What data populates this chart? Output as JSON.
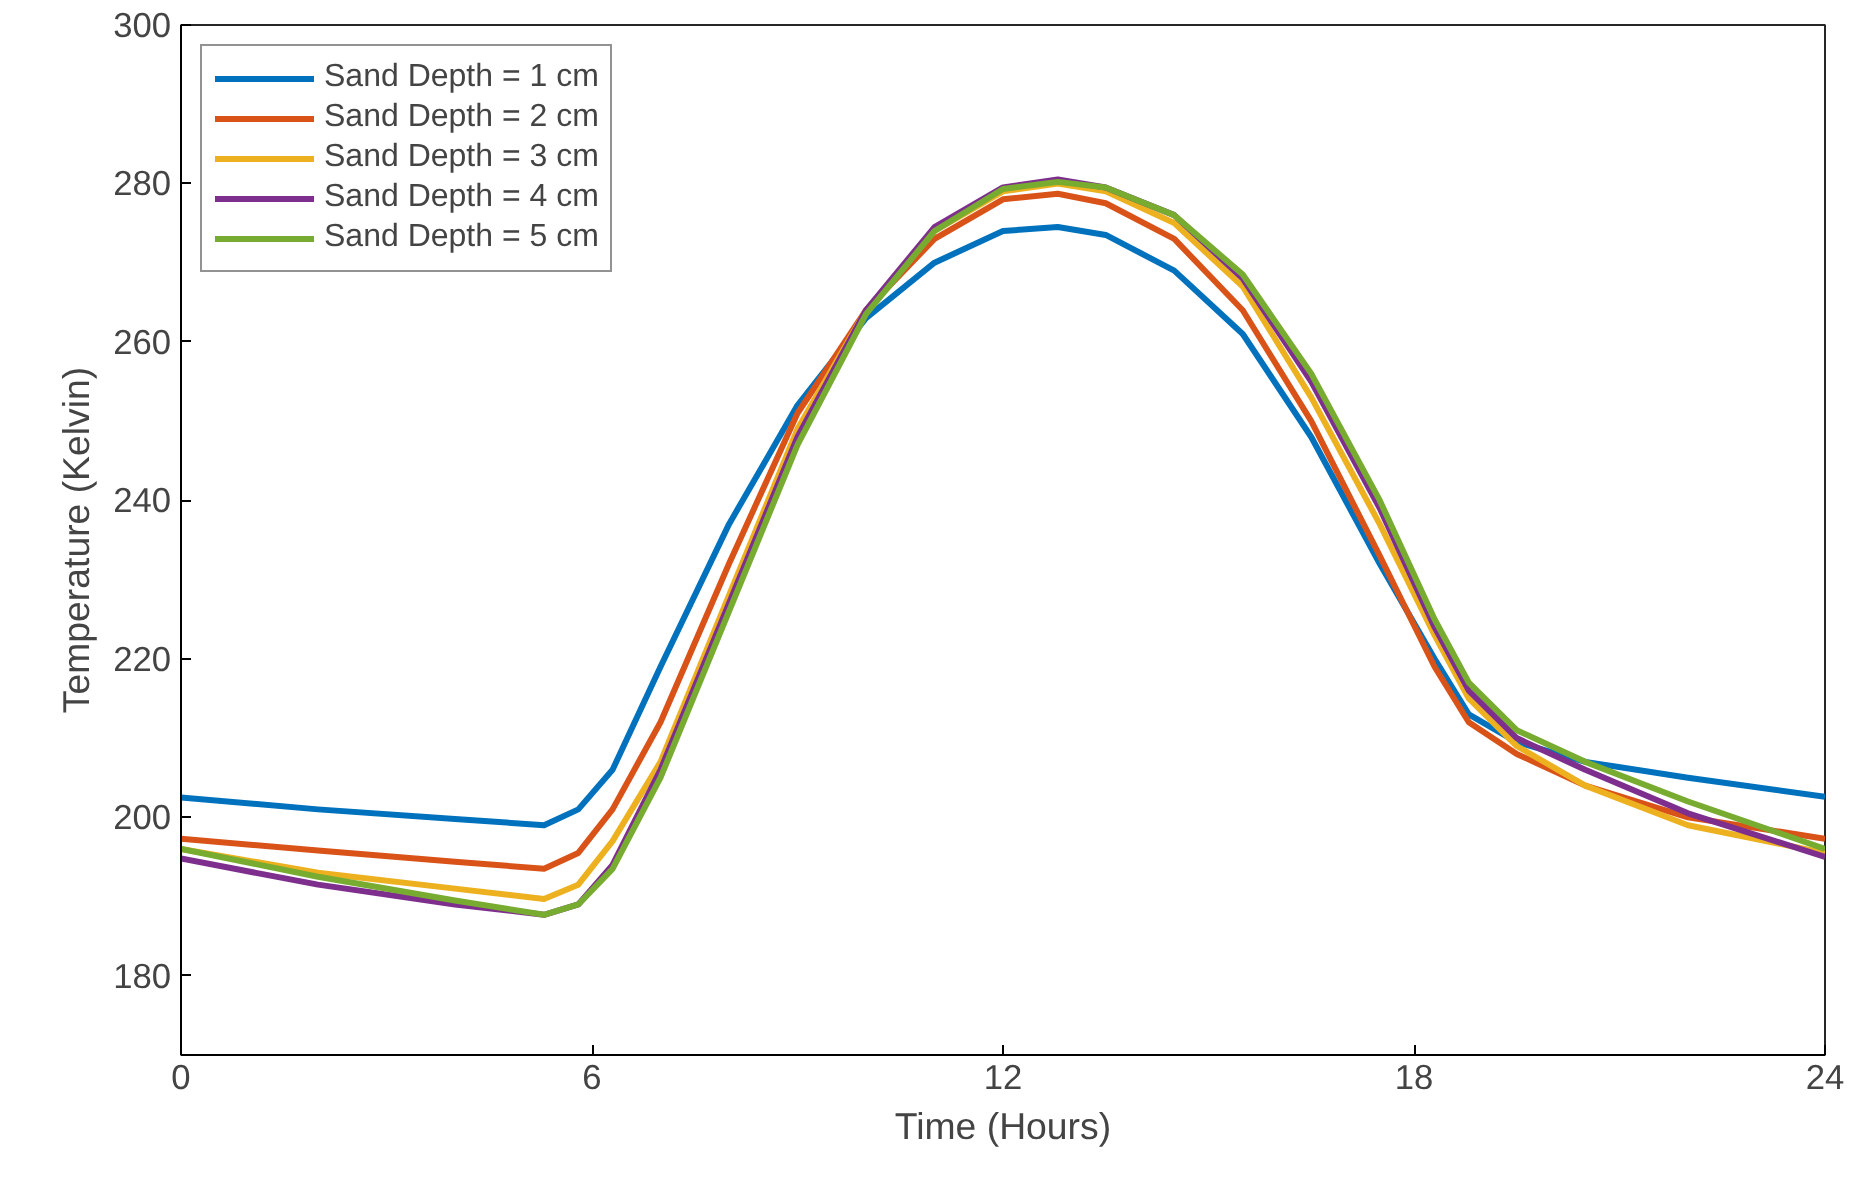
{
  "chart_data": {
    "type": "line",
    "xlabel": "Time (Hours)",
    "ylabel": "Temperature (Kelvin)",
    "xlim": [
      0,
      24
    ],
    "ylim": [
      170,
      300
    ],
    "xticks": [
      0,
      6,
      12,
      18,
      24
    ],
    "yticks": [
      180,
      200,
      220,
      240,
      260,
      280,
      300
    ],
    "grid": false,
    "legend": "top left",
    "line_style": "solid",
    "marker": "none",
    "x": [
      0,
      2,
      4,
      5.3,
      5.8,
      6.3,
      7,
      8,
      9,
      10,
      11,
      12,
      12.8,
      13.5,
      14.5,
      15.5,
      16.5,
      17.5,
      18.3,
      18.8,
      19.5,
      20.5,
      22,
      24
    ],
    "series": [
      {
        "name": "Sand Depth = 1 cm",
        "color": "#0072bd",
        "values": [
          202.5,
          201,
          199.8,
          199,
          201,
          206,
          219,
          237,
          252,
          263,
          270,
          274,
          274.5,
          273.5,
          269,
          261,
          248,
          232,
          220,
          213,
          209.5,
          207,
          205,
          202.6
        ]
      },
      {
        "name": "Sand Depth = 2 cm",
        "color": "#d95319",
        "values": [
          197.3,
          195.8,
          194.4,
          193.5,
          195.5,
          201,
          212,
          232,
          251,
          264,
          273,
          278,
          278.7,
          277.5,
          273,
          264,
          250,
          233,
          219,
          212,
          208,
          204,
          200,
          197.3
        ]
      },
      {
        "name": "Sand Depth = 3 cm",
        "color": "#edb120",
        "values": [
          196,
          193,
          191,
          189.7,
          191.5,
          197,
          207,
          228,
          249,
          264,
          274,
          279,
          280,
          279,
          275,
          267,
          253,
          237,
          223,
          215,
          209,
          204,
          199,
          195.5
        ]
      },
      {
        "name": "Sand Depth = 4 cm",
        "color": "#7e2f8e",
        "values": [
          194.8,
          191.5,
          189,
          187.7,
          189,
          194,
          206,
          227,
          248,
          264,
          274.5,
          279.5,
          280.5,
          279.5,
          276,
          268,
          255,
          239,
          224,
          216,
          210,
          206,
          200.5,
          195
        ]
      },
      {
        "name": "Sand Depth = 5 cm",
        "color": "#77ac30",
        "values": [
          196,
          192.5,
          189.5,
          187.7,
          189,
          193.5,
          205,
          226,
          247,
          263.5,
          274,
          279.3,
          280.2,
          279.5,
          276,
          268.5,
          256,
          240,
          225,
          217,
          211,
          207,
          202,
          196
        ]
      }
    ]
  }
}
